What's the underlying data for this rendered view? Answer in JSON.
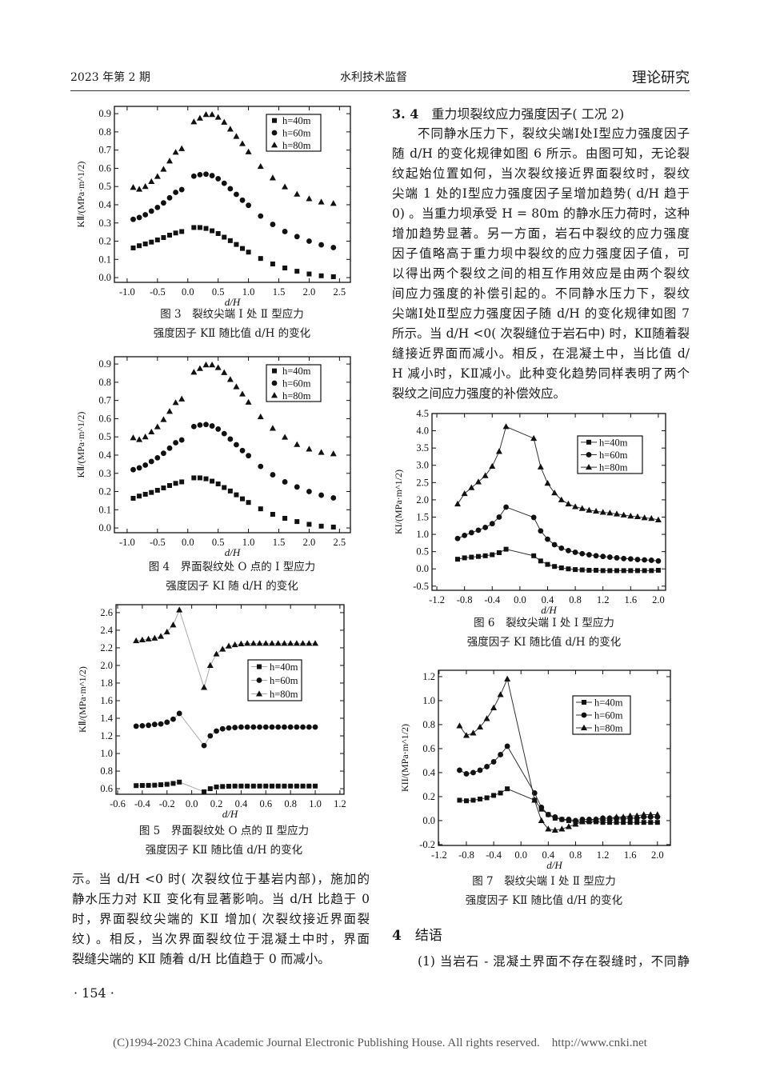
{
  "header": {
    "issue": "2023 年第 2 期",
    "journal": "水利技术监督",
    "column": "理论研究"
  },
  "right_column": {
    "section_number": "3. 4",
    "section_title": "重力坝裂纹应力强度因子( 工况 2)",
    "lines": [
      "不同静水压力下，裂纹尖端Ⅰ处Ⅰ型应力强度因子",
      "随 d/H 的变化规律如图 6 所示。由图可知，无论裂",
      "纹起始位置如何，当次裂纹接近界面裂纹时，裂纹",
      "尖端 1 处的Ⅰ型应力强度因子呈增加趋势( d/H 趋于",
      "0) 。当重力坝承受 H = 80m 的静水压力荷时，这种",
      "增加趋势显著。另一方面，岩石中裂纹的应力强度",
      "因子值略高于重力坝中裂纹的应力强度因子值，可",
      "以得出两个裂纹之间的相互作用效应是由两个裂纹",
      "间应力强度的补偿引起的。不同静水压力下，裂纹",
      "尖端Ⅰ处Ⅱ型应力强度因子随 d/H 的变化规律如图 7",
      "所示。当 d/H <0( 次裂缝位于岩石中) 时，KⅡ随着裂",
      "缝接近界面而减小。相反，在混凝土中，当比值 d/",
      "H 减小时，KⅡ减小。此种变化趋势同样表明了两个",
      "裂纹之间应力强度的补偿效应。"
    ],
    "conclusion_number": "4",
    "conclusion_title": "结语",
    "conclusion_first_line": "(1) 当岩石 - 混凝土界面不存在裂缝时，不同静"
  },
  "left_column": {
    "lines": [
      "示。当 d/H <0 时( 次裂纹位于基岩内部)，施加的",
      "静水压力对 KⅡ 变化有显著影响。当 d/H 比趋于 0",
      "时，界面裂纹尖端的 KⅡ 增加( 次裂纹接近界面裂",
      "纹) 。相反，当次界面裂纹位于混凝土中时，界面",
      "裂缝尖端的 KⅡ 随着 d/H 比值趋于 0 而减小。"
    ],
    "page_number": "· 154 ·"
  },
  "footer": "(C)1994-2023 China Academic Journal Electronic Publishing House. All rights reserved.    http://www.cnki.net",
  "chart_data": [
    {
      "type": "scatter",
      "caption": [
        "图 3　裂纹尖端 Ⅰ 处 Ⅱ 型应力",
        "强度因子 KⅡ 随比值 d/H 的变化"
      ],
      "xlabel": "d/H",
      "ylabel": "KⅡ/(MPa·m^1/2)",
      "xlim": [
        -1.21,
        2.68
      ],
      "ylim": [
        -0.026,
        0.94
      ],
      "xticks": [
        "-1.0",
        "-0.5",
        "0.0",
        "0.5",
        "1.0",
        "1.5",
        "2.0",
        "2.5"
      ],
      "yticks": [
        "0.0",
        "0.1",
        "0.2",
        "0.3",
        "0.4",
        "0.5",
        "0.6",
        "0.7",
        "0.8",
        "0.9"
      ],
      "legend": "top-right",
      "lines": false,
      "x": [
        -0.9,
        -0.8,
        -0.7,
        -0.6,
        -0.5,
        -0.4,
        -0.3,
        -0.2,
        -0.1,
        0.1,
        0.2,
        0.3,
        0.4,
        0.5,
        0.6,
        0.7,
        0.8,
        0.9,
        1.0,
        1.2,
        1.4,
        1.6,
        1.8,
        2.0,
        2.2,
        2.4
      ],
      "series": [
        {
          "name": "h=40m",
          "marker": "square",
          "values": [
            0.163,
            0.175,
            0.185,
            0.195,
            0.207,
            0.22,
            0.233,
            0.245,
            0.253,
            0.275,
            0.275,
            0.27,
            0.257,
            0.242,
            0.222,
            0.203,
            0.182,
            0.16,
            0.14,
            0.105,
            0.075,
            0.053,
            0.035,
            0.02,
            0.01,
            0.005
          ]
        },
        {
          "name": "h=60m",
          "marker": "circle",
          "values": [
            0.32,
            0.33,
            0.345,
            0.365,
            0.385,
            0.41,
            0.438,
            0.468,
            0.483,
            0.557,
            0.565,
            0.568,
            0.56,
            0.543,
            0.518,
            0.488,
            0.457,
            0.425,
            0.397,
            0.338,
            0.292,
            0.253,
            0.225,
            0.2,
            0.18,
            0.165
          ]
        },
        {
          "name": "h=80m",
          "marker": "triangle",
          "values": [
            0.495,
            0.485,
            0.5,
            0.527,
            0.555,
            0.595,
            0.64,
            0.688,
            0.708,
            0.855,
            0.875,
            0.895,
            0.895,
            0.88,
            0.853,
            0.815,
            0.775,
            0.735,
            0.69,
            0.61,
            0.547,
            0.498,
            0.458,
            0.433,
            0.415,
            0.407
          ]
        }
      ]
    },
    {
      "type": "scatter",
      "caption": [
        "图 4　界面裂纹处 O 点的 Ⅰ 型应力",
        "强度因子 KⅠ 随 d/H 的变化"
      ],
      "xlabel": "d/H",
      "ylabel": "KⅡ/(MPa·m^1/2)",
      "xlim": [
        -1.21,
        2.68
      ],
      "ylim": [
        -0.026,
        0.94
      ],
      "xticks": [
        "-1.0",
        "-0.5",
        "0.0",
        "0.5",
        "1.0",
        "1.5",
        "2.0",
        "2.5"
      ],
      "yticks": [
        "0.0",
        "0.1",
        "0.2",
        "0.3",
        "0.4",
        "0.5",
        "0.6",
        "0.7",
        "0.8",
        "0.9"
      ],
      "legend": "top-right",
      "lines": false,
      "x": [
        -0.9,
        -0.8,
        -0.7,
        -0.6,
        -0.5,
        -0.4,
        -0.3,
        -0.2,
        -0.1,
        0.1,
        0.2,
        0.3,
        0.4,
        0.5,
        0.6,
        0.7,
        0.8,
        0.9,
        1.0,
        1.2,
        1.4,
        1.6,
        1.8,
        2.0,
        2.2,
        2.4
      ],
      "series": [
        {
          "name": "h=40m",
          "marker": "square",
          "values": [
            0.163,
            0.175,
            0.185,
            0.195,
            0.207,
            0.22,
            0.233,
            0.245,
            0.253,
            0.275,
            0.275,
            0.27,
            0.257,
            0.242,
            0.222,
            0.203,
            0.182,
            0.16,
            0.14,
            0.105,
            0.075,
            0.053,
            0.035,
            0.02,
            0.01,
            0.005
          ]
        },
        {
          "name": "h=60m",
          "marker": "circle",
          "values": [
            0.32,
            0.33,
            0.345,
            0.365,
            0.385,
            0.41,
            0.438,
            0.468,
            0.483,
            0.557,
            0.565,
            0.568,
            0.56,
            0.543,
            0.518,
            0.488,
            0.457,
            0.425,
            0.397,
            0.338,
            0.292,
            0.253,
            0.225,
            0.2,
            0.18,
            0.165
          ]
        },
        {
          "name": "h=80m",
          "marker": "triangle",
          "values": [
            0.495,
            0.485,
            0.5,
            0.527,
            0.555,
            0.595,
            0.64,
            0.688,
            0.708,
            0.855,
            0.875,
            0.895,
            0.895,
            0.88,
            0.853,
            0.815,
            0.775,
            0.735,
            0.69,
            0.61,
            0.547,
            0.498,
            0.458,
            0.433,
            0.415,
            0.407
          ]
        }
      ]
    },
    {
      "type": "line",
      "caption": [
        "图 5　界面裂纹处 O 点的 Ⅱ 型应力",
        "强度因子 KⅡ 随比值 d/H 的变化"
      ],
      "xlabel": "d/H",
      "ylabel": "KⅡ/(MPa·m^1/2)",
      "xlim": [
        -0.613,
        1.233
      ],
      "ylim": [
        0.537,
        2.69
      ],
      "xticks": [
        "-0.6",
        "-0.4",
        "-0.2",
        "0.0",
        "0.2",
        "0.4",
        "0.6",
        "0.8",
        "1.0",
        "1.2"
      ],
      "yticks": [
        "0.6",
        "0.8",
        "1.0",
        "1.2",
        "1.4",
        "1.6",
        "1.8",
        "2.0",
        "2.2",
        "2.4",
        "2.6"
      ],
      "legend": "right",
      "lines": true,
      "line_color": "#aaaaaa",
      "x": [
        -0.45,
        -0.4,
        -0.35,
        -0.3,
        -0.25,
        -0.2,
        -0.15,
        -0.1,
        0.1,
        0.15,
        0.2,
        0.25,
        0.3,
        0.35,
        0.4,
        0.45,
        0.5,
        0.55,
        0.6,
        0.65,
        0.7,
        0.75,
        0.8,
        0.85,
        0.9,
        0.95,
        1.0
      ],
      "series": [
        {
          "name": "h=40m",
          "marker": "square",
          "values": [
            0.635,
            0.637,
            0.638,
            0.64,
            0.645,
            0.65,
            0.66,
            0.675,
            0.565,
            0.6,
            0.62,
            0.625,
            0.628,
            0.63,
            0.63,
            0.63,
            0.63,
            0.63,
            0.63,
            0.63,
            0.63,
            0.63,
            0.63,
            0.63,
            0.63,
            0.63,
            0.63
          ]
        },
        {
          "name": "h=60m",
          "marker": "circle",
          "values": [
            1.31,
            1.315,
            1.32,
            1.33,
            1.335,
            1.355,
            1.39,
            1.455,
            1.09,
            1.2,
            1.255,
            1.28,
            1.29,
            1.295,
            1.3,
            1.3,
            1.3,
            1.3,
            1.3,
            1.3,
            1.3,
            1.3,
            1.3,
            1.3,
            1.3,
            1.3,
            1.3
          ]
        },
        {
          "name": "h=80m",
          "marker": "triangle",
          "values": [
            2.28,
            2.29,
            2.3,
            2.31,
            2.33,
            2.38,
            2.46,
            2.63,
            1.75,
            2.0,
            2.13,
            2.185,
            2.22,
            2.235,
            2.245,
            2.25,
            2.25,
            2.25,
            2.25,
            2.25,
            2.25,
            2.25,
            2.25,
            2.25,
            2.25,
            2.25,
            2.25
          ]
        }
      ]
    },
    {
      "type": "line",
      "caption": [
        "图 6　裂纹尖端 Ⅰ 处 Ⅰ 型应力",
        "强度因子 KⅠ 随比值 d/H 的变化"
      ],
      "xlabel": "d/H",
      "ylabel": "KI/(MPa·m^1/2)",
      "xlim": [
        -1.27,
        2.105
      ],
      "ylim": [
        -0.62,
        4.5
      ],
      "xticks": [
        "-1.2",
        "-0.8",
        "-0.4",
        "0.0",
        "0.4",
        "0.8",
        "1.2",
        "1.6",
        "2.0"
      ],
      "yticks": [
        "-0.5",
        "0.0",
        "0.5",
        "1.0",
        "1.5",
        "2.0",
        "2.5",
        "3.0",
        "3.5",
        "4.0",
        "4.5"
      ],
      "legend": "top-right",
      "lines": true,
      "line_color": "#333333",
      "x": [
        -0.9,
        -0.8,
        -0.7,
        -0.6,
        -0.5,
        -0.4,
        -0.3,
        -0.2,
        0.2,
        0.3,
        0.4,
        0.5,
        0.6,
        0.7,
        0.8,
        0.9,
        1.0,
        1.1,
        1.2,
        1.3,
        1.4,
        1.5,
        1.6,
        1.7,
        1.8,
        1.9,
        2.0
      ],
      "series": [
        {
          "name": "h=40m",
          "marker": "square",
          "values": [
            0.28,
            0.32,
            0.34,
            0.36,
            0.38,
            0.41,
            0.47,
            0.57,
            0.38,
            0.23,
            0.13,
            0.07,
            0.03,
            0.0,
            -0.02,
            -0.03,
            -0.04,
            -0.04,
            -0.05,
            -0.05,
            -0.05,
            -0.05,
            -0.05,
            -0.05,
            -0.05,
            -0.05,
            -0.04
          ]
        },
        {
          "name": "h=60m",
          "marker": "circle",
          "values": [
            0.88,
            0.97,
            1.05,
            1.12,
            1.2,
            1.31,
            1.5,
            1.79,
            1.49,
            1.1,
            0.86,
            0.7,
            0.6,
            0.53,
            0.48,
            0.44,
            0.41,
            0.38,
            0.36,
            0.34,
            0.32,
            0.3,
            0.29,
            0.27,
            0.26,
            0.25,
            0.23
          ]
        },
        {
          "name": "h=80m",
          "marker": "triangle",
          "values": [
            1.88,
            2.18,
            2.35,
            2.52,
            2.7,
            2.97,
            3.4,
            4.12,
            3.78,
            2.95,
            2.48,
            2.2,
            2.0,
            1.88,
            1.8,
            1.75,
            1.7,
            1.67,
            1.64,
            1.62,
            1.59,
            1.56,
            1.53,
            1.51,
            1.48,
            1.46,
            1.42
          ]
        }
      ]
    },
    {
      "type": "line",
      "caption": [
        "图 7　裂纹尖端 Ⅰ 处 Ⅱ 型应力",
        "强度因子 KⅡ 随比值 d/H 的变化"
      ],
      "xlabel": "d/H",
      "ylabel": "KII/(MPa·m^1/2)",
      "xlim": [
        -1.21,
        2.19
      ],
      "ylim": [
        -0.207,
        1.253
      ],
      "xticks": [
        "-1.2",
        "-0.8",
        "-0.4",
        "0.0",
        "0.4",
        "0.8",
        "1.2",
        "1.6",
        "2.0"
      ],
      "yticks": [
        "-0.2",
        "0.0",
        "0.2",
        "0.4",
        "0.6",
        "0.8",
        "1.0",
        "1.2"
      ],
      "legend": "top-right",
      "lines": true,
      "line_color": "#333333",
      "x": [
        -0.9,
        -0.8,
        -0.7,
        -0.6,
        -0.5,
        -0.4,
        -0.3,
        -0.2,
        0.2,
        0.3,
        0.4,
        0.5,
        0.6,
        0.7,
        0.8,
        0.9,
        1.0,
        1.1,
        1.2,
        1.3,
        1.4,
        1.5,
        1.6,
        1.7,
        1.8,
        1.9,
        2.0
      ],
      "series": [
        {
          "name": "h=40m",
          "marker": "square",
          "values": [
            0.17,
            0.165,
            0.17,
            0.18,
            0.19,
            0.21,
            0.23,
            0.265,
            0.17,
            0.095,
            0.05,
            0.02,
            0.01,
            0.0,
            -0.01,
            -0.01,
            -0.01,
            -0.01,
            -0.015,
            -0.015,
            -0.015,
            -0.015,
            -0.015,
            -0.015,
            -0.015,
            -0.015,
            -0.015
          ]
        },
        {
          "name": "h=60m",
          "marker": "circle",
          "values": [
            0.42,
            0.39,
            0.4,
            0.42,
            0.45,
            0.49,
            0.55,
            0.62,
            0.23,
            0.11,
            0.05,
            0.03,
            0.01,
            0.01,
            0.0,
            0.01,
            0.01,
            0.01,
            0.02,
            0.02,
            0.02,
            0.02,
            0.02,
            0.02,
            0.03,
            0.03,
            0.03
          ]
        },
        {
          "name": "h=80m",
          "marker": "triangle",
          "values": [
            0.79,
            0.71,
            0.73,
            0.78,
            0.85,
            0.94,
            1.05,
            1.18,
            0.17,
            0.0,
            -0.07,
            -0.08,
            -0.07,
            -0.05,
            -0.03,
            -0.01,
            0.0,
            0.01,
            0.02,
            0.02,
            0.03,
            0.03,
            0.04,
            0.04,
            0.05,
            0.05,
            0.05
          ]
        }
      ]
    }
  ]
}
